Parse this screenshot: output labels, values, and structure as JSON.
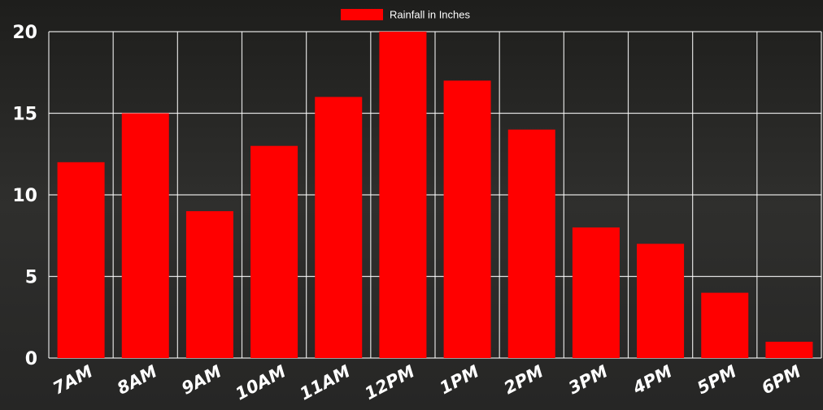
{
  "chart_data": {
    "type": "bar",
    "categories": [
      "7AM",
      "8AM",
      "9AM",
      "10AM",
      "11AM",
      "12PM",
      "1PM",
      "2PM",
      "3PM",
      "4PM",
      "5PM",
      "6PM"
    ],
    "series": [
      {
        "name": "Rainfall in Inches",
        "values": [
          12,
          15,
          9,
          13,
          16,
          20,
          17,
          14,
          8,
          7,
          4,
          1
        ]
      }
    ],
    "ylim": [
      0,
      20
    ],
    "yticks": [
      0,
      5,
      10,
      15,
      20
    ],
    "grid": true,
    "legend_position": "top-center",
    "bar_color": "#ff0000",
    "grid_color": "#ffffff",
    "background_color": "#2a2a2a"
  }
}
